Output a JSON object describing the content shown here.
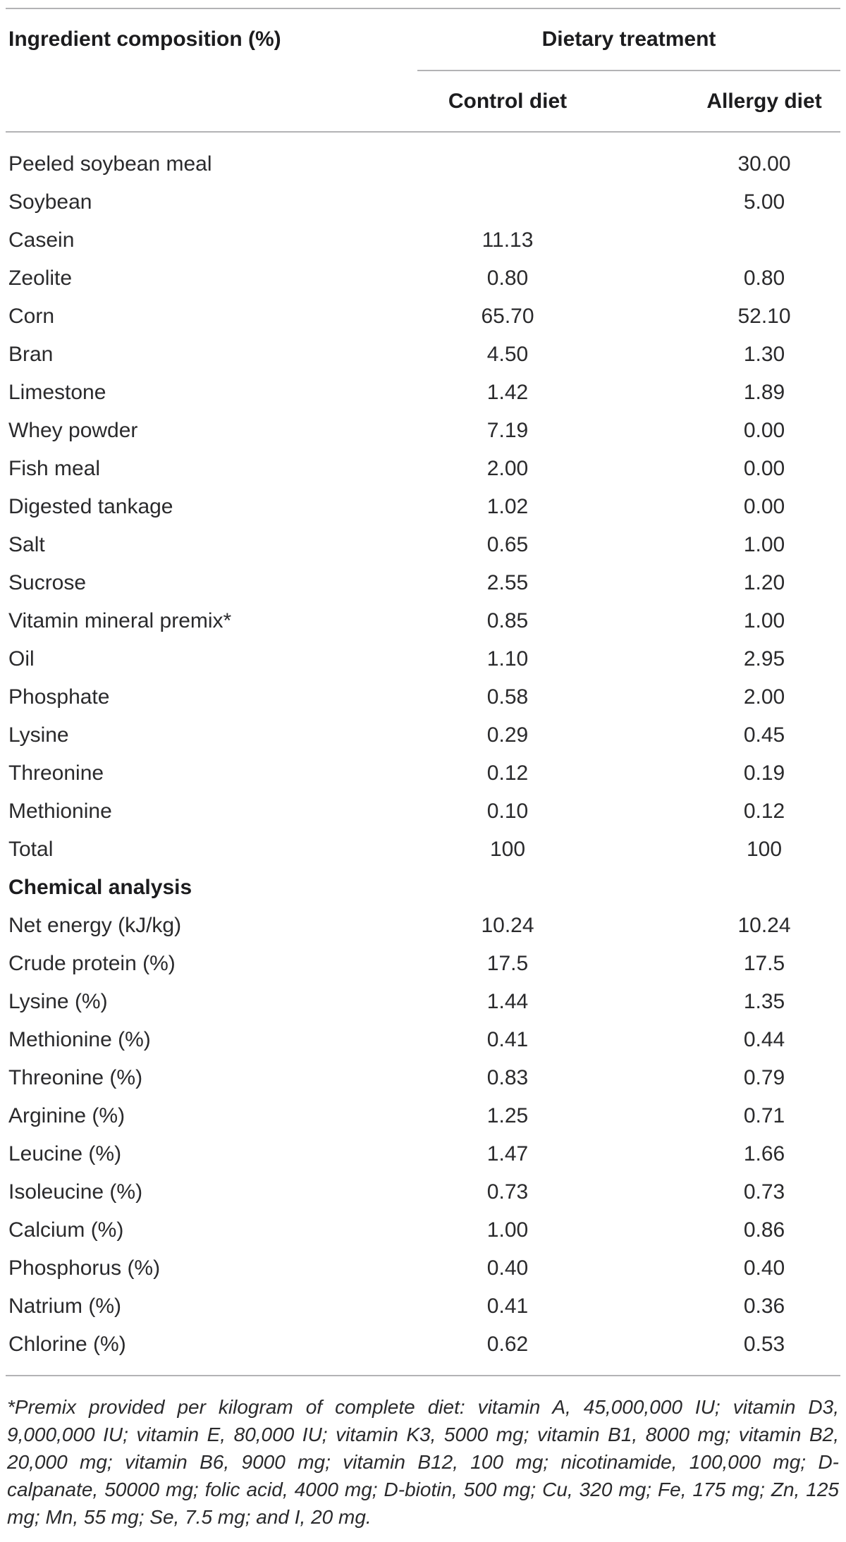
{
  "table": {
    "col1_header": "Ingredient composition (%)",
    "group_header": "Dietary treatment",
    "control_header": "Control diet",
    "allergy_header": "Allergy diet",
    "ingredient_rows": [
      {
        "label": "Peeled soybean meal",
        "control": "",
        "allergy": "30.00"
      },
      {
        "label": "Soybean",
        "control": "",
        "allergy": "5.00"
      },
      {
        "label": "Casein",
        "control": "11.13",
        "allergy": ""
      },
      {
        "label": "Zeolite",
        "control": "0.80",
        "allergy": "0.80"
      },
      {
        "label": "Corn",
        "control": "65.70",
        "allergy": "52.10"
      },
      {
        "label": "Bran",
        "control": "4.50",
        "allergy": "1.30"
      },
      {
        "label": "Limestone",
        "control": "1.42",
        "allergy": "1.89"
      },
      {
        "label": "Whey powder",
        "control": "7.19",
        "allergy": "0.00"
      },
      {
        "label": "Fish meal",
        "control": "2.00",
        "allergy": "0.00"
      },
      {
        "label": "Digested tankage",
        "control": "1.02",
        "allergy": "0.00"
      },
      {
        "label": "Salt",
        "control": "0.65",
        "allergy": "1.00"
      },
      {
        "label": "Sucrose",
        "control": "2.55",
        "allergy": "1.20"
      },
      {
        "label": "Vitamin mineral premix*",
        "control": "0.85",
        "allergy": "1.00"
      },
      {
        "label": "Oil",
        "control": "1.10",
        "allergy": "2.95"
      },
      {
        "label": "Phosphate",
        "control": "0.58",
        "allergy": "2.00"
      },
      {
        "label": "Lysine",
        "control": "0.29",
        "allergy": "0.45"
      },
      {
        "label": "Threonine",
        "control": "0.12",
        "allergy": "0.19"
      },
      {
        "label": "Methionine",
        "control": "0.10",
        "allergy": "0.12"
      },
      {
        "label": "Total",
        "control": "100",
        "allergy": "100"
      }
    ],
    "section_header": "Chemical analysis",
    "analysis_rows": [
      {
        "label": "Net energy (kJ/kg)",
        "control": "10.24",
        "allergy": "10.24"
      },
      {
        "label": "Crude protein (%)",
        "control": "17.5",
        "allergy": "17.5"
      },
      {
        "label": "Lysine (%)",
        "control": "1.44",
        "allergy": "1.35"
      },
      {
        "label": "Methionine (%)",
        "control": "0.41",
        "allergy": "0.44"
      },
      {
        "label": "Threonine (%)",
        "control": "0.83",
        "allergy": "0.79"
      },
      {
        "label": "Arginine (%)",
        "control": "1.25",
        "allergy": "0.71"
      },
      {
        "label": "Leucine (%)",
        "control": "1.47",
        "allergy": "1.66"
      },
      {
        "label": "Isoleucine (%)",
        "control": "0.73",
        "allergy": "0.73"
      },
      {
        "label": "Calcium (%)",
        "control": "1.00",
        "allergy": "0.86"
      },
      {
        "label": "Phosphorus (%)",
        "control": "0.40",
        "allergy": "0.40"
      },
      {
        "label": "Natrium (%)",
        "control": "0.41",
        "allergy": "0.36"
      },
      {
        "label": "Chlorine (%)",
        "control": "0.62",
        "allergy": "0.53"
      }
    ],
    "footnote": "*Premix provided per kilogram of complete diet: vitamin A, 45,000,000 IU; vitamin D3, 9,000,000 IU; vitamin E, 80,000 IU; vitamin K3, 5000 mg; vitamin B1, 8000 mg; vitamin B2, 20,000 mg; vitamin B6, 9000 mg; vitamin B12, 100 mg; nicotinamide, 100,000 mg; D-calpanate, 50000 mg; folic acid, 4000 mg; D-biotin, 500 mg; Cu, 320 mg; Fe, 175 mg; Zn, 125 mg; Mn, 55 mg; Se, 7.5 mg; and I, 20 mg."
  },
  "colors": {
    "rule_gray": "#b3b3b5",
    "text_dark": "#1c1c1e",
    "text_body": "#2a2a2c",
    "background": "#ffffff"
  }
}
